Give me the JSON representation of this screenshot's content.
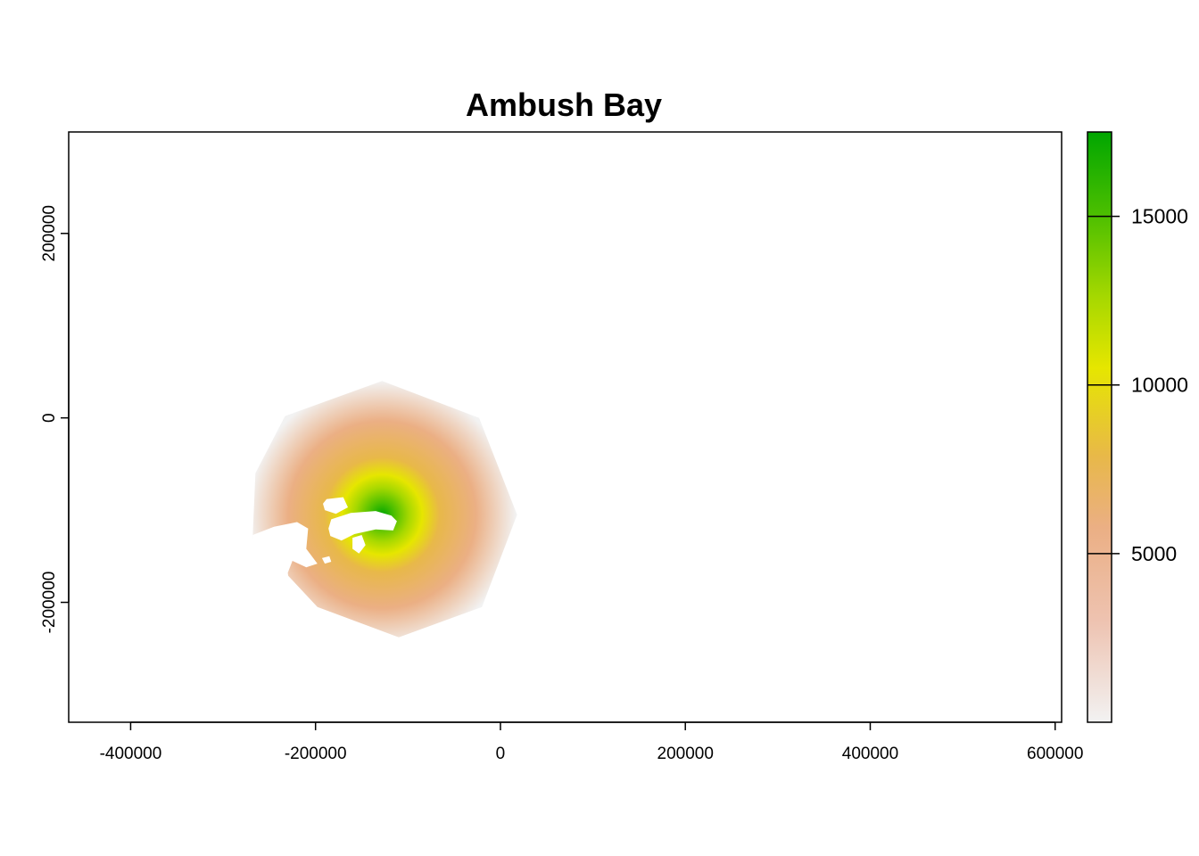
{
  "chart_data": {
    "type": "heatmap",
    "title": "Ambush Bay",
    "xlabel": "",
    "ylabel": "",
    "xlim": [
      -467000,
      607000
    ],
    "ylim": [
      -330000,
      310000
    ],
    "x_ticks": [
      -400000,
      -200000,
      0,
      200000,
      400000,
      600000
    ],
    "x_tick_labels": [
      "-400000",
      "-200000",
      "0",
      "200000",
      "400000",
      "600000"
    ],
    "y_ticks": [
      -200000,
      0,
      200000
    ],
    "y_tick_labels": [
      "-200000",
      "0",
      "200000"
    ],
    "grid": false,
    "raster": {
      "center": [
        -128000,
        -105000
      ],
      "outer_boundary": [
        [
          -128000,
          40000
        ],
        [
          -23000,
          0
        ],
        [
          18000,
          -105000
        ],
        [
          -20000,
          -205000
        ],
        [
          -110000,
          -238000
        ],
        [
          -198000,
          -205000
        ],
        [
          -268000,
          -130000
        ],
        [
          -265000,
          -60000
        ],
        [
          -233000,
          2000
        ]
      ],
      "max_value": 17500,
      "min_value": 0,
      "no_data_areas": [
        {
          "name": "upper-island",
          "polygon": [
            [
              -188000,
              -88000
            ],
            [
              -170000,
              -86000
            ],
            [
              -165000,
              -97000
            ],
            [
              -178000,
              -104000
            ],
            [
              -190000,
              -100000
            ],
            [
              -192000,
              -93000
            ]
          ]
        },
        {
          "name": "main-island",
          "polygon": [
            [
              -183000,
              -110000
            ],
            [
              -162000,
              -103000
            ],
            [
              -135000,
              -101000
            ],
            [
              -118000,
              -106000
            ],
            [
              -112000,
              -112000
            ],
            [
              -116000,
              -122000
            ],
            [
              -135000,
              -121000
            ],
            [
              -158000,
              -126000
            ],
            [
              -172000,
              -133000
            ],
            [
              -184000,
              -128000
            ],
            [
              -186000,
              -120000
            ]
          ]
        },
        {
          "name": "mid-islet",
          "polygon": [
            [
              -160000,
              -130000
            ],
            [
              -150000,
              -127000
            ],
            [
              -146000,
              -138000
            ],
            [
              -153000,
              -147000
            ],
            [
              -160000,
              -142000
            ]
          ]
        },
        {
          "name": "west-coast",
          "polygon": [
            [
              -268000,
              -127000
            ],
            [
              -245000,
              -118000
            ],
            [
              -220000,
              -113000
            ],
            [
              -208000,
              -120000
            ],
            [
              -210000,
              -142000
            ],
            [
              -198000,
              -158000
            ],
            [
              -210000,
              -162000
            ],
            [
              -225000,
              -155000
            ],
            [
              -230000,
              -168000
            ],
            [
              -225000,
              -205000
            ],
            [
              -262000,
              -205000
            ],
            [
              -268000,
              -180000
            ]
          ]
        },
        {
          "name": "west-islet",
          "polygon": [
            [
              -193000,
              -152000
            ],
            [
              -185000,
              -150000
            ],
            [
              -183000,
              -156000
            ],
            [
              -190000,
              -158000
            ]
          ]
        }
      ]
    },
    "legend": {
      "placement": "right",
      "type": "colorbar",
      "range": [
        0,
        17500
      ],
      "ticks": [
        5000,
        10000,
        15000
      ],
      "tick_labels": [
        "5000",
        "10000",
        "15000"
      ],
      "colors": {
        "low": "#f2f2f2",
        "light_pink": "#eec3b1",
        "salmon": "#ebaf84",
        "orange": "#e8b849",
        "yellow": "#e6e600",
        "lime": "#a6d800",
        "green": "#4cbf00",
        "high": "#00a600"
      }
    }
  }
}
